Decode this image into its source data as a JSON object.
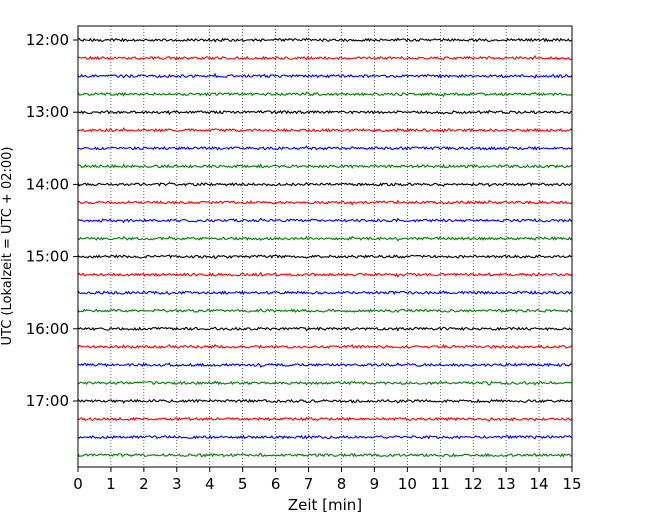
{
  "chart_data": {
    "type": "line",
    "title": "",
    "xlabel": "Zeit  [min]",
    "ylabel": "UTC (Lokalzeit = UTC + 02:00)",
    "xlim": [
      0,
      15
    ],
    "x_ticks": [
      "0",
      "1",
      "2",
      "3",
      "4",
      "5",
      "6",
      "7",
      "8",
      "9",
      "10",
      "11",
      "12",
      "13",
      "14",
      "15"
    ],
    "y_ticks": [
      "12:00",
      "13:00",
      "14:00",
      "15:00",
      "16:00",
      "17:00"
    ],
    "trace_interval_min": 15,
    "first_trace": "12:00",
    "trace_count": 24,
    "trace_colors": [
      "#000000",
      "#ff0000",
      "#0000ff",
      "#008000"
    ],
    "grid": "vertical dotted lines at each minute",
    "series": [
      {
        "start": "12:00",
        "color": "#000000"
      },
      {
        "start": "12:15",
        "color": "#ff0000"
      },
      {
        "start": "12:30",
        "color": "#0000ff"
      },
      {
        "start": "12:45",
        "color": "#008000"
      },
      {
        "start": "13:00",
        "color": "#000000"
      },
      {
        "start": "13:15",
        "color": "#ff0000"
      },
      {
        "start": "13:30",
        "color": "#0000ff"
      },
      {
        "start": "13:45",
        "color": "#008000"
      },
      {
        "start": "14:00",
        "color": "#000000"
      },
      {
        "start": "14:15",
        "color": "#ff0000"
      },
      {
        "start": "14:30",
        "color": "#0000ff"
      },
      {
        "start": "14:45",
        "color": "#008000"
      },
      {
        "start": "15:00",
        "color": "#000000"
      },
      {
        "start": "15:15",
        "color": "#ff0000"
      },
      {
        "start": "15:30",
        "color": "#0000ff"
      },
      {
        "start": "15:45",
        "color": "#008000"
      },
      {
        "start": "16:00",
        "color": "#000000"
      },
      {
        "start": "16:15",
        "color": "#ff0000"
      },
      {
        "start": "16:30",
        "color": "#0000ff"
      },
      {
        "start": "16:45",
        "color": "#008000"
      },
      {
        "start": "17:00",
        "color": "#000000"
      },
      {
        "start": "17:15",
        "color": "#ff0000"
      },
      {
        "start": "17:30",
        "color": "#0000ff"
      },
      {
        "start": "17:45",
        "color": "#008000"
      }
    ]
  }
}
